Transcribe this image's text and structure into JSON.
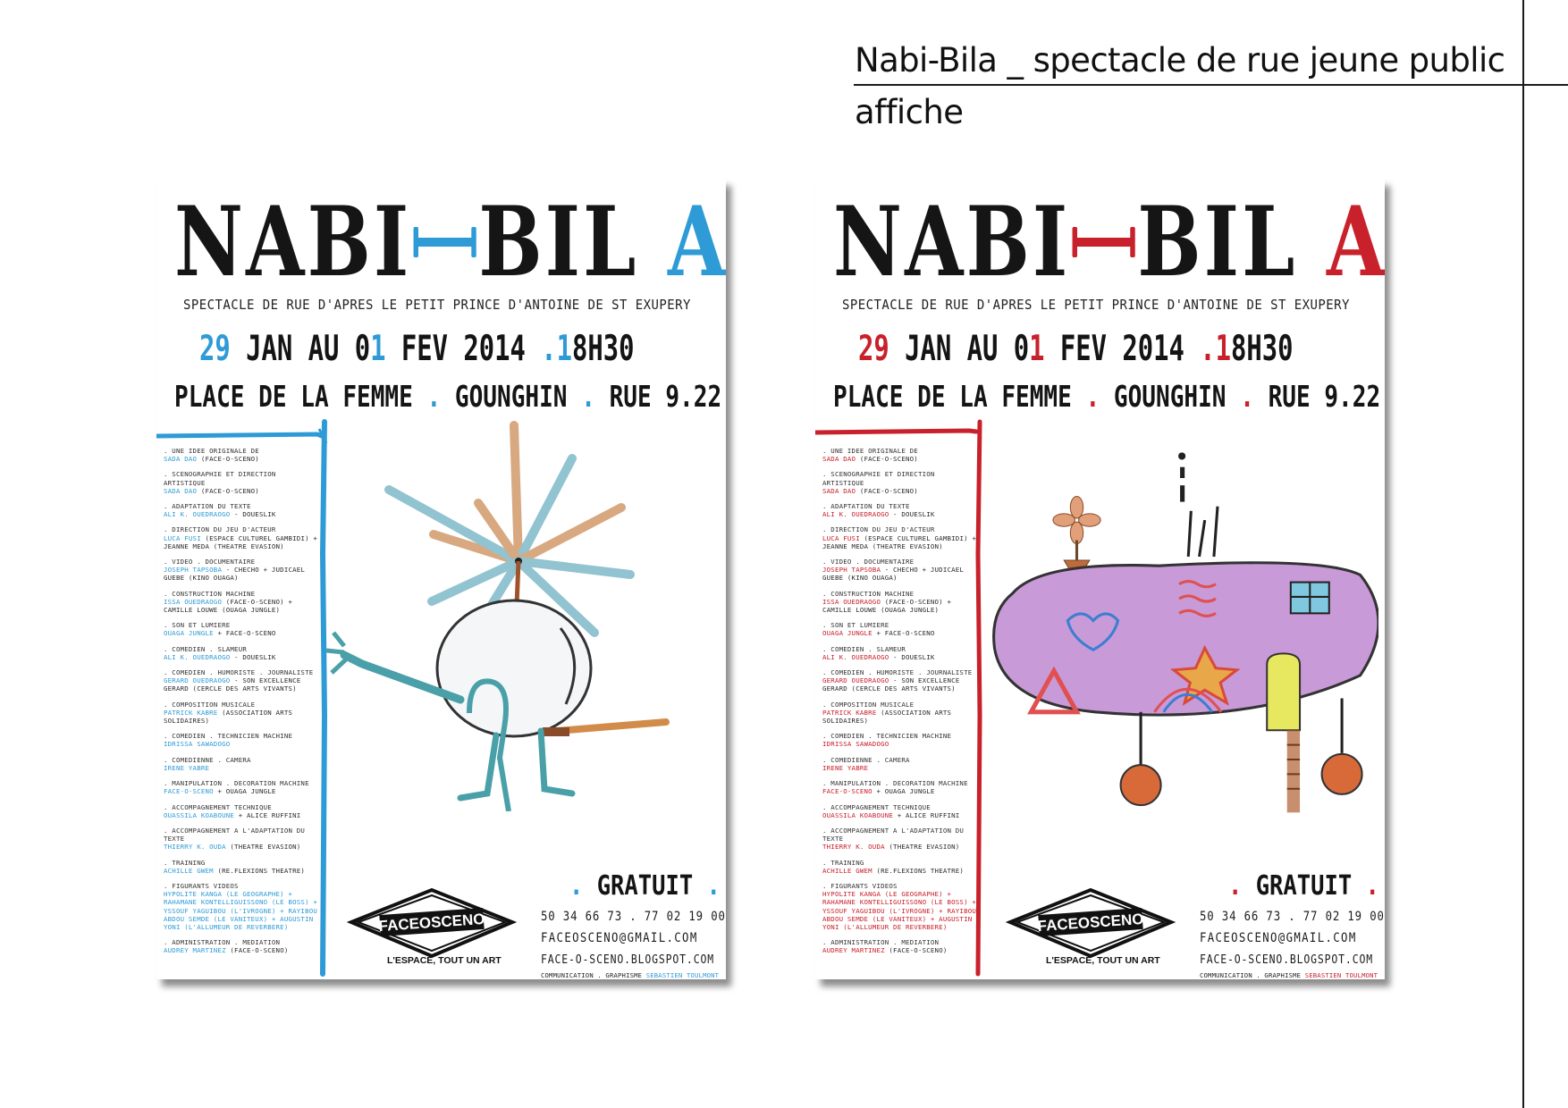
{
  "header": {
    "title": "Nabi-Bila _ spectacle de rue jeune public",
    "subtitle": "affiche"
  },
  "colors": {
    "poster_left_accent": "#2e9bd6",
    "poster_right_accent": "#c8212b"
  },
  "poster": {
    "title_main": "NABI",
    "title_bil": "BIL",
    "title_last": "A",
    "subtitle": "SPECTACLE DE RUE D'APRES LE PETIT PRINCE D'ANTOINE DE ST EXUPERY",
    "date_day": "29",
    "date_mid": " JAN AU 0",
    "date_end_digit": "1",
    "date_rest": " FEV 2014 ",
    "date_dot": ".",
    "time_digit": "1",
    "time_rest": "8H30",
    "place_1": "PLACE DE LA FEMME ",
    "place_dot1": ".",
    "place_2": " GOUNGHIN ",
    "place_dot2": ".",
    "place_3": " RUE 9.22",
    "gratuit": "GRATUIT",
    "phone": "50 34 66 73 . 77 02 19 00",
    "email": "FACEOSCENO@GMAIL.COM",
    "blog": "FACE-O-SCENO.BLOGSPOT.COM",
    "communication_label": "COMMUNICATION . GRAPHISME",
    "communication_name": "SEBASTIEN TOULMONT",
    "logo_text": "FACEOSCENO",
    "logo_tagline": "L'ESPACE, TOUT UN ART",
    "credits": [
      {
        "role": "UNE IDEE ORIGINALE DE",
        "names": "SADA DAO",
        "extra": "(FACE-O-SCENO)"
      },
      {
        "role": "SCENOGRAPHIE ET DIRECTION ARTISTIQUE",
        "names": "SADA DAO",
        "extra": "(FACE-O-SCENO)"
      },
      {
        "role": "ADAPTATION DU TEXTE",
        "names": "ALI K. OUEDRAOGO",
        "extra": "- DOUESLIK"
      },
      {
        "role": "DIRECTION DU JEU D'ACTEUR",
        "names": "LUCA FUSI",
        "extra": "(ESPACE CULTUREL GAMBIDI) + JEANNE MEDA (THEATRE EVASION)"
      },
      {
        "role": "VIDEO . DOCUMENTAIRE",
        "names": "JOSEPH TAPSOBA",
        "extra": "- CHECHO + JUDICAEL GUEBE (KINO OUAGA)"
      },
      {
        "role": "CONSTRUCTION MACHINE",
        "names": "ISSA OUEDRAOGO",
        "extra": "(FACE-O-SCENO) + CAMILLE LOUWE (OUAGA JUNGLE)"
      },
      {
        "role": "SON ET LUMIERE",
        "names": "OUAGA JUNGLE",
        "extra": "+ FACE-O-SCENO"
      },
      {
        "role": "COMEDIEN . SLAMEUR",
        "names": "ALI K. OUEDRAOGO",
        "extra": "- DOUESLIK"
      },
      {
        "role": "COMEDIEN . HUMORISTE . JOURNALISTE",
        "names": "GERARD OUEDRAOGO",
        "extra": "- SON EXCELLENCE GERARD (CERCLE DES ARTS VIVANTS)"
      },
      {
        "role": "COMPOSITION MUSICALE",
        "names": "PATRICK KABRE",
        "extra": "(ASSOCIATION ARTS SOLIDAIRES)"
      },
      {
        "role": "COMEDIEN . TECHNICIEN MACHINE",
        "names": "IDRISSA SAWADOGO",
        "extra": ""
      },
      {
        "role": "COMEDIENNE . CAMERA",
        "names": "IRENE YABRE",
        "extra": ""
      },
      {
        "role": "MANIPULATION . DECORATION MACHINE",
        "names": "FACE-O-SCENO",
        "extra": "+ OUAGA JUNGLE"
      },
      {
        "role": "ACCOMPAGNEMENT TECHNIQUE",
        "names": "OUASSILA KOABOUNE",
        "extra": "+ ALICE RUFFINI"
      },
      {
        "role": "ACCOMPAGNEMENT A L'ADAPTATION DU TEXTE",
        "names": "THIERRY K. OUDA",
        "extra": "(THEATRE EVASION)"
      },
      {
        "role": "TRAINING",
        "names": "ACHILLE GWEM",
        "extra": "(RE.FLEXIONS THEATRE)"
      },
      {
        "role": "FIGURANTS VIDEOS",
        "names": "HYPOLITE KANGA (LE GEOGRAPHE) + RAHAMANE KONTELLIGUISSONO (LE BOSS) + YSSOUF YAGUIBOU (L'IVROGNE) + RAYIBOU ABDOU SEMDE (LE VANITEUX) + AUGUSTIN YONI (L'ALLUMEUR DE REVERBERE)",
        "extra": ""
      },
      {
        "role": "ADMINISTRATION . MEDIATION",
        "names": "AUDREY MARTINEZ",
        "extra": "(FACE-O-SCENO)"
      }
    ]
  }
}
